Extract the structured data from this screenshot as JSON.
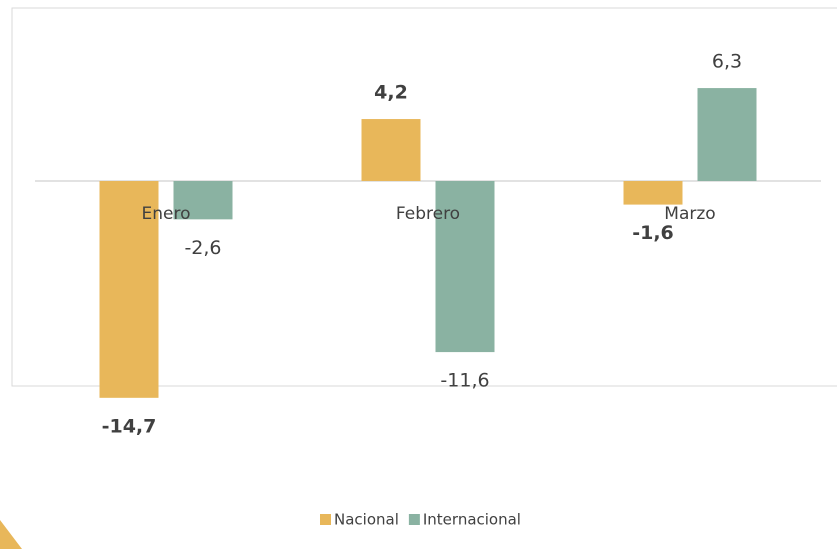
{
  "chart_data": {
    "type": "bar",
    "categories": [
      "Enero",
      "Febrero",
      "Marzo"
    ],
    "series": [
      {
        "name": "Nacional",
        "color": "#e8b75a",
        "values": [
          -14.7,
          4.2,
          -1.6
        ],
        "value_labels": [
          "-14,7",
          "4,2",
          "-1,6"
        ]
      },
      {
        "name": "Internacional",
        "color": "#8ab2a2",
        "values": [
          -2.6,
          -11.6,
          6.3
        ],
        "value_labels": [
          "-2,6",
          "-11,6",
          "6,3"
        ]
      }
    ],
    "ylim": [
      -16,
      8
    ]
  }
}
